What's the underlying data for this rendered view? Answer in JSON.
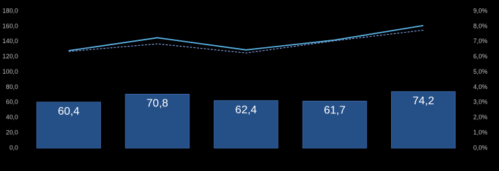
{
  "chart_data": {
    "type": "combo",
    "categories": [
      null,
      null,
      null,
      null,
      null
    ],
    "series": [
      {
        "type": "bar",
        "color": "#254f87",
        "values": [
          60.4,
          70.8,
          62.4,
          61.7,
          74.2
        ],
        "value_labels": [
          "60,4",
          "70,8",
          "62,4",
          "61,7",
          "74,2"
        ]
      },
      {
        "type": "line",
        "axis": "y2",
        "color": "#5ab4e6",
        "dashed": false,
        "values": [
          6.4,
          7.25,
          6.45,
          7.1,
          8.05
        ]
      },
      {
        "type": "line",
        "axis": "y2",
        "color": "#7d9fdc",
        "dashed": true,
        "values": [
          6.35,
          6.85,
          6.25,
          7.05,
          7.75
        ]
      }
    ],
    "ylim": [
      0,
      180
    ],
    "yticks": [
      {
        "value": 0,
        "label": "0,0"
      },
      {
        "value": 20,
        "label": "20,0"
      },
      {
        "value": 40,
        "label": "40,0"
      },
      {
        "value": 60,
        "label": "60,0"
      },
      {
        "value": 80,
        "label": "80,0"
      },
      {
        "value": 100,
        "label": "100,0"
      },
      {
        "value": 120,
        "label": "120,0"
      },
      {
        "value": 140,
        "label": "140,0"
      },
      {
        "value": 160,
        "label": "160,0"
      },
      {
        "value": 180,
        "label": "180,0"
      }
    ],
    "y2lim": [
      0,
      9
    ],
    "y2ticks": [
      {
        "value": 0,
        "label": "0,0%"
      },
      {
        "value": 1,
        "label": "1,0%"
      },
      {
        "value": 2,
        "label": "2,0%"
      },
      {
        "value": 3,
        "label": "3,0%"
      },
      {
        "value": 4,
        "label": "4,0%"
      },
      {
        "value": 5,
        "label": "5,0%"
      },
      {
        "value": 6,
        "label": "6,0%"
      },
      {
        "value": 7,
        "label": "7,0%"
      },
      {
        "value": 8,
        "label": "8,0%"
      },
      {
        "value": 9,
        "label": "9,0%"
      }
    ],
    "grid": false
  }
}
